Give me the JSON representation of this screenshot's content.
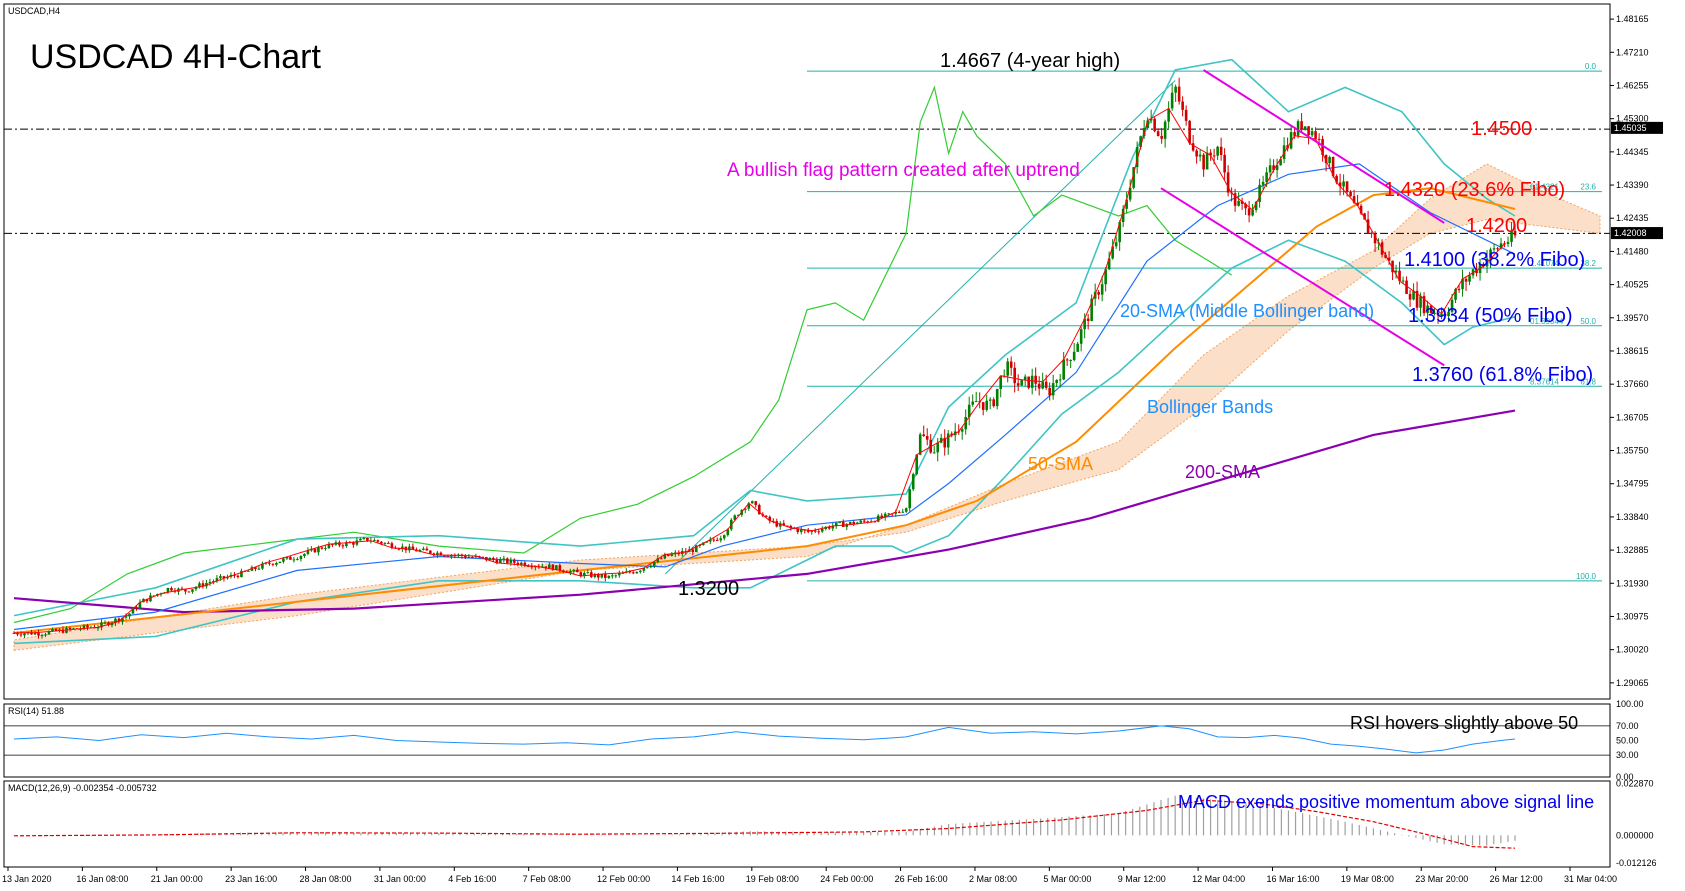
{
  "chart_data": [
    {
      "type": "candlestick",
      "symbol_label": "USDCAD,H4",
      "title": "USDCAD 4H-Chart",
      "ylim": [
        1.286,
        1.486
      ],
      "y_ticks": [
        "1.48165",
        "1.47210",
        "1.46255",
        "1.45300",
        "1.44345",
        "1.43390",
        "1.42435",
        "1.41480",
        "1.40525",
        "1.39570",
        "1.38615",
        "1.37660",
        "1.36705",
        "1.35750",
        "1.34795",
        "1.33840",
        "1.32885",
        "1.31930",
        "1.30975",
        "1.30020",
        "1.29065"
      ],
      "price_tags": [
        {
          "label": "1.45035",
          "value": 1.45035
        },
        {
          "label": "1.42008",
          "value": 1.42008
        }
      ],
      "x_ticks": [
        "13 Jan 2020",
        "16 Jan 08:00",
        "21 Jan 00:00",
        "23 Jan 16:00",
        "28 Jan 08:00",
        "31 Jan 00:00",
        "4 Feb 16:00",
        "7 Feb 08:00",
        "12 Feb 00:00",
        "14 Feb 16:00",
        "19 Feb 08:00",
        "24 Feb 00:00",
        "26 Feb 16:00",
        "2 Mar 08:00",
        "5 Mar 00:00",
        "9 Mar 12:00",
        "12 Mar 04:00",
        "16 Mar 16:00",
        "19 Mar 08:00",
        "23 Mar 20:00",
        "26 Mar 12:00",
        "31 Mar 04:00"
      ],
      "horizontal_levels": [
        {
          "value": 1.45,
          "label": "1.4500",
          "style": "dash-dot"
        },
        {
          "value": 1.42,
          "label": "1.4200",
          "style": "dash-dot"
        }
      ],
      "fibonacci": [
        {
          "ratio_label": "0.0",
          "value": 1.4667
        },
        {
          "ratio_label": "23.6",
          "value": 1.432,
          "tag": "61.4321"
        },
        {
          "ratio_label": "38.2",
          "value": 1.41,
          "tag": "1.41074"
        },
        {
          "ratio_label": "50.0",
          "value": 1.3934,
          "tag": "01.39344"
        },
        {
          "ratio_label": "61.8",
          "value": 1.376,
          "tag": "8.37614"
        },
        {
          "ratio_label": "100.0",
          "value": 1.32
        }
      ],
      "annotations": {
        "high": "1.4667 (4-year high)",
        "low": "1.3200",
        "flag": "A bullish flag pattern created after uptrend",
        "lvl_4500": "1.4500",
        "fib_236": "1.4320 (23.6% Fibo)",
        "lvl_4200": "1.4200",
        "fib_382": "1.4100 (38.2% Fibo)",
        "sma20": "20-SMA (Middle Bollinger band)",
        "fib_50": "1.3934 (50% Fibo)",
        "fib_618": "1.3760 (61.8% Fibo)",
        "bollinger": "Bollinger Bands",
        "sma50": "50-SMA",
        "sma200": "200-SMA"
      },
      "price_path": [
        [
          0,
          1.305
        ],
        [
          2,
          1.305
        ],
        [
          4,
          1.306
        ],
        [
          6,
          1.307
        ],
        [
          8,
          1.31
        ],
        [
          9,
          1.314
        ],
        [
          10,
          1.316
        ],
        [
          11,
          1.318
        ],
        [
          12,
          1.317
        ],
        [
          14,
          1.32
        ],
        [
          16,
          1.322
        ],
        [
          18,
          1.325
        ],
        [
          20,
          1.327
        ],
        [
          22,
          1.33
        ],
        [
          24,
          1.331
        ],
        [
          25,
          1.332
        ],
        [
          26,
          1.331
        ],
        [
          28,
          1.329
        ],
        [
          30,
          1.328
        ],
        [
          32,
          1.327
        ],
        [
          34,
          1.326
        ],
        [
          36,
          1.325
        ],
        [
          38,
          1.324
        ],
        [
          40,
          1.322
        ],
        [
          42,
          1.321
        ],
        [
          44,
          1.323
        ],
        [
          46,
          1.327
        ],
        [
          48,
          1.329
        ],
        [
          50,
          1.333
        ],
        [
          51,
          1.339
        ],
        [
          52,
          1.343
        ],
        [
          53,
          1.338
        ],
        [
          54,
          1.336
        ],
        [
          56,
          1.334
        ],
        [
          58,
          1.336
        ],
        [
          60,
          1.337
        ],
        [
          62,
          1.339
        ],
        [
          63,
          1.341
        ],
        [
          64,
          1.362
        ],
        [
          65,
          1.358
        ],
        [
          66,
          1.361
        ],
        [
          67,
          1.366
        ],
        [
          68,
          1.372
        ],
        [
          69,
          1.37
        ],
        [
          70,
          1.382
        ],
        [
          71,
          1.376
        ],
        [
          72,
          1.378
        ],
        [
          73,
          1.374
        ],
        [
          74,
          1.381
        ],
        [
          75,
          1.388
        ],
        [
          76,
          1.398
        ],
        [
          77,
          1.408
        ],
        [
          78,
          1.42
        ],
        [
          79,
          1.438
        ],
        [
          80,
          1.455
        ],
        [
          81,
          1.448
        ],
        [
          82,
          1.462
        ],
        [
          83,
          1.448
        ],
        [
          84,
          1.44
        ],
        [
          85,
          1.445
        ],
        [
          86,
          1.43
        ],
        [
          87,
          1.426
        ],
        [
          88,
          1.432
        ],
        [
          89,
          1.44
        ],
        [
          90,
          1.447
        ],
        [
          91,
          1.452
        ],
        [
          92,
          1.448
        ],
        [
          93,
          1.439
        ],
        [
          94,
          1.432
        ],
        [
          95,
          1.425
        ],
        [
          96,
          1.419
        ],
        [
          97,
          1.412
        ],
        [
          98,
          1.406
        ],
        [
          99,
          1.401
        ],
        [
          100,
          1.398
        ],
        [
          101,
          1.397
        ],
        [
          102,
          1.404
        ],
        [
          103,
          1.409
        ],
        [
          104,
          1.413
        ],
        [
          105,
          1.417
        ],
        [
          106,
          1.419
        ]
      ],
      "sma20": [
        [
          0,
          1.306
        ],
        [
          10,
          1.311
        ],
        [
          20,
          1.323
        ],
        [
          30,
          1.327
        ],
        [
          40,
          1.325
        ],
        [
          46,
          1.324
        ],
        [
          50,
          1.33
        ],
        [
          56,
          1.336
        ],
        [
          63,
          1.339
        ],
        [
          66,
          1.348
        ],
        [
          70,
          1.362
        ],
        [
          75,
          1.38
        ],
        [
          80,
          1.412
        ],
        [
          85,
          1.428
        ],
        [
          90,
          1.437
        ],
        [
          95,
          1.44
        ],
        [
          100,
          1.426
        ],
        [
          106,
          1.414
        ]
      ],
      "sma50": [
        [
          0,
          1.305
        ],
        [
          20,
          1.314
        ],
        [
          40,
          1.323
        ],
        [
          56,
          1.33
        ],
        [
          63,
          1.336
        ],
        [
          68,
          1.343
        ],
        [
          75,
          1.36
        ],
        [
          82,
          1.387
        ],
        [
          88,
          1.408
        ],
        [
          92,
          1.422
        ],
        [
          96,
          1.431
        ],
        [
          100,
          1.433
        ],
        [
          106,
          1.427
        ]
      ],
      "sma200": [
        [
          0,
          1.315
        ],
        [
          12,
          1.311
        ],
        [
          24,
          1.312
        ],
        [
          40,
          1.316
        ],
        [
          56,
          1.322
        ],
        [
          66,
          1.329
        ],
        [
          76,
          1.338
        ],
        [
          86,
          1.35
        ],
        [
          96,
          1.362
        ],
        [
          106,
          1.369
        ]
      ],
      "boll_upper": [
        [
          0,
          1.31
        ],
        [
          10,
          1.318
        ],
        [
          20,
          1.332
        ],
        [
          30,
          1.333
        ],
        [
          40,
          1.33
        ],
        [
          48,
          1.333
        ],
        [
          52,
          1.346
        ],
        [
          56,
          1.343
        ],
        [
          63,
          1.345
        ],
        [
          66,
          1.37
        ],
        [
          70,
          1.385
        ],
        [
          75,
          1.4
        ],
        [
          79,
          1.442
        ],
        [
          82,
          1.467
        ],
        [
          86,
          1.47
        ],
        [
          90,
          1.455
        ],
        [
          94,
          1.462
        ],
        [
          98,
          1.455
        ],
        [
          101,
          1.44
        ],
        [
          104,
          1.43
        ],
        [
          106,
          1.425
        ]
      ],
      "boll_lower": [
        [
          0,
          1.302
        ],
        [
          10,
          1.304
        ],
        [
          20,
          1.314
        ],
        [
          30,
          1.32
        ],
        [
          40,
          1.32
        ],
        [
          48,
          1.318
        ],
        [
          52,
          1.318
        ],
        [
          58,
          1.33
        ],
        [
          62,
          1.33
        ],
        [
          63,
          1.328
        ],
        [
          66,
          1.333
        ],
        [
          70,
          1.35
        ],
        [
          74,
          1.368
        ],
        [
          78,
          1.38
        ],
        [
          82,
          1.395
        ],
        [
          86,
          1.41
        ],
        [
          90,
          1.418
        ],
        [
          94,
          1.412
        ],
        [
          98,
          1.4
        ],
        [
          101,
          1.388
        ],
        [
          103,
          1.393
        ],
        [
          106,
          1.396
        ]
      ],
      "kumo_a": [
        [
          0,
          1.3
        ],
        [
          20,
          1.31
        ],
        [
          40,
          1.323
        ],
        [
          56,
          1.327
        ],
        [
          63,
          1.336
        ],
        [
          70,
          1.348
        ],
        [
          78,
          1.36
        ],
        [
          84,
          1.385
        ],
        [
          90,
          1.402
        ],
        [
          96,
          1.415
        ],
        [
          100,
          1.43
        ],
        [
          104,
          1.44
        ],
        [
          108,
          1.432
        ],
        [
          112,
          1.425
        ]
      ],
      "kumo_b": [
        [
          0,
          1.303
        ],
        [
          20,
          1.316
        ],
        [
          40,
          1.326
        ],
        [
          56,
          1.33
        ],
        [
          63,
          1.334
        ],
        [
          70,
          1.343
        ],
        [
          78,
          1.352
        ],
        [
          84,
          1.37
        ],
        [
          90,
          1.392
        ],
        [
          96,
          1.41
        ],
        [
          100,
          1.42
        ],
        [
          104,
          1.424
        ],
        [
          108,
          1.422
        ],
        [
          112,
          1.42
        ]
      ],
      "chikou": [
        [
          0,
          1.308
        ],
        [
          4,
          1.312
        ],
        [
          8,
          1.322
        ],
        [
          12,
          1.328
        ],
        [
          18,
          1.331
        ],
        [
          24,
          1.334
        ],
        [
          30,
          1.33
        ],
        [
          36,
          1.328
        ],
        [
          40,
          1.338
        ],
        [
          44,
          1.342
        ],
        [
          48,
          1.35
        ],
        [
          52,
          1.36
        ],
        [
          54,
          1.372
        ],
        [
          56,
          1.398
        ],
        [
          58,
          1.4
        ],
        [
          60,
          1.395
        ],
        [
          63,
          1.42
        ],
        [
          64,
          1.452
        ],
        [
          65,
          1.462
        ],
        [
          66,
          1.443
        ],
        [
          67,
          1.455
        ],
        [
          68,
          1.448
        ],
        [
          70,
          1.44
        ],
        [
          72,
          1.425
        ],
        [
          74,
          1.431
        ],
        [
          76,
          1.428
        ],
        [
          78,
          1.425
        ],
        [
          80,
          1.428
        ],
        [
          82,
          1.418
        ],
        [
          84,
          1.413
        ],
        [
          86,
          1.408
        ]
      ],
      "flag_channel": {
        "upper": [
          [
            84,
            1.467
          ],
          [
            101,
            1.423
          ]
        ],
        "lower": [
          [
            81,
            1.433
          ],
          [
            101,
            1.382
          ]
        ]
      },
      "uptrend_line": [
        [
          46,
          1.322
        ],
        [
          82,
          1.464
        ]
      ]
    },
    {
      "type": "line",
      "indicator_label": "RSI(14) 51.88",
      "annotation": "RSI hovers slightly above 50",
      "ylim": [
        0,
        100
      ],
      "y_ticks": [
        "100.00",
        "70.00",
        "50.00",
        "30.00",
        "0.00"
      ],
      "levels": [
        70,
        30
      ],
      "rsi_path": [
        [
          0,
          52
        ],
        [
          3,
          55
        ],
        [
          6,
          50
        ],
        [
          9,
          58
        ],
        [
          12,
          54
        ],
        [
          15,
          60
        ],
        [
          18,
          55
        ],
        [
          21,
          52
        ],
        [
          24,
          57
        ],
        [
          27,
          50
        ],
        [
          30,
          48
        ],
        [
          33,
          46
        ],
        [
          36,
          45
        ],
        [
          39,
          47
        ],
        [
          42,
          44
        ],
        [
          45,
          52
        ],
        [
          48,
          55
        ],
        [
          51,
          62
        ],
        [
          54,
          56
        ],
        [
          57,
          53
        ],
        [
          60,
          51
        ],
        [
          63,
          55
        ],
        [
          66,
          68
        ],
        [
          69,
          60
        ],
        [
          72,
          62
        ],
        [
          75,
          59
        ],
        [
          78,
          63
        ],
        [
          81,
          70
        ],
        [
          83,
          66
        ],
        [
          85,
          55
        ],
        [
          87,
          54
        ],
        [
          89,
          57
        ],
        [
          91,
          53
        ],
        [
          93,
          45
        ],
        [
          95,
          42
        ],
        [
          97,
          38
        ],
        [
          99,
          33
        ],
        [
          101,
          37
        ],
        [
          103,
          45
        ],
        [
          105,
          50
        ],
        [
          106,
          52
        ]
      ]
    },
    {
      "type": "bar",
      "indicator_label": "MACD(12,26,9) -0.002354 -0.005732",
      "annotation": "MACD exends positive momentum above signal line",
      "ylim": [
        -0.014,
        0.024
      ],
      "y_ticks": [
        "0.022870",
        "0.000000",
        "-0.012126"
      ],
      "macd_points": [
        [
          0,
          -0.0002
        ],
        [
          6,
          -0.0004
        ],
        [
          10,
          0.0004
        ],
        [
          16,
          0.0012
        ],
        [
          22,
          0.0014
        ],
        [
          28,
          0.001
        ],
        [
          34,
          0.0008
        ],
        [
          40,
          0.0004
        ],
        [
          46,
          0.0002
        ],
        [
          52,
          0.0018
        ],
        [
          58,
          0.0014
        ],
        [
          63,
          0.0016
        ],
        [
          66,
          0.005
        ],
        [
          72,
          0.0072
        ],
        [
          78,
          0.0098
        ],
        [
          82,
          0.0175
        ],
        [
          86,
          0.015
        ],
        [
          90,
          0.011
        ],
        [
          94,
          0.006
        ],
        [
          98,
          0.0002
        ],
        [
          101,
          -0.004
        ],
        [
          104,
          -0.0045
        ],
        [
          106,
          -0.0024
        ]
      ],
      "signal_points": [
        [
          0,
          -0.0002
        ],
        [
          10,
          0.0002
        ],
        [
          20,
          0.0011
        ],
        [
          30,
          0.001
        ],
        [
          40,
          0.0005
        ],
        [
          50,
          0.0009
        ],
        [
          60,
          0.0015
        ],
        [
          66,
          0.003
        ],
        [
          74,
          0.0068
        ],
        [
          80,
          0.011
        ],
        [
          84,
          0.0155
        ],
        [
          88,
          0.014
        ],
        [
          92,
          0.0105
        ],
        [
          96,
          0.006
        ],
        [
          100,
          0.0
        ],
        [
          103,
          -0.005
        ],
        [
          106,
          -0.0057
        ]
      ]
    }
  ]
}
